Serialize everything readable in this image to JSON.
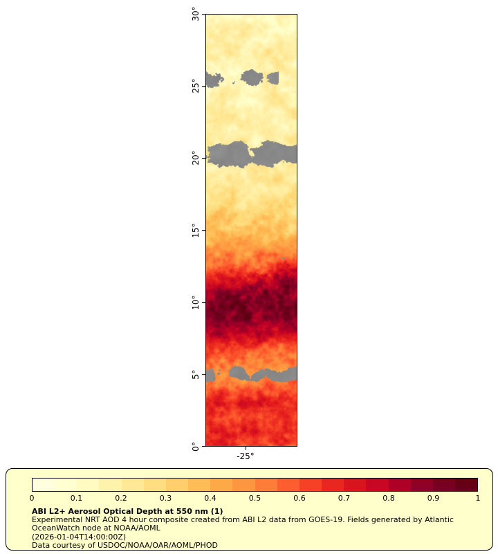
{
  "map": {
    "y_axis_ticks": [
      "30°",
      "25°",
      "20°",
      "15°",
      "10°",
      "5°",
      "0°"
    ],
    "x_axis_tick": "-25°",
    "nodata_color": "#8a8a8a"
  },
  "legend": {
    "background": "#ffffcc",
    "colorbar_ticks": [
      "0",
      "0.1",
      "0.2",
      "0.3",
      "0.4",
      "0.5",
      "0.6",
      "0.7",
      "0.8",
      "0.9",
      "1"
    ],
    "colorbar_stops": [
      "#ffffe5",
      "#ffffcc",
      "#ffeda0",
      "#fed976",
      "#feb24c",
      "#fd8d3c",
      "#fc4e2a",
      "#e31a1c",
      "#bd0026",
      "#800026",
      "#5c0011"
    ],
    "title": "ABI L2+ Aerosol Optical Depth at 550 nm (1)",
    "description": "Experimental NRT AOD 4 hour composite created from ABI L2 data from GOES-19. Fields generated by Atlantic OceanWatch node at NOAA/AOML",
    "timestamp": "(2026-01-04T14:00:00Z)",
    "credit": "Data courtesy of USDOC/NOAA/OAR/AOML/PHOD"
  }
}
